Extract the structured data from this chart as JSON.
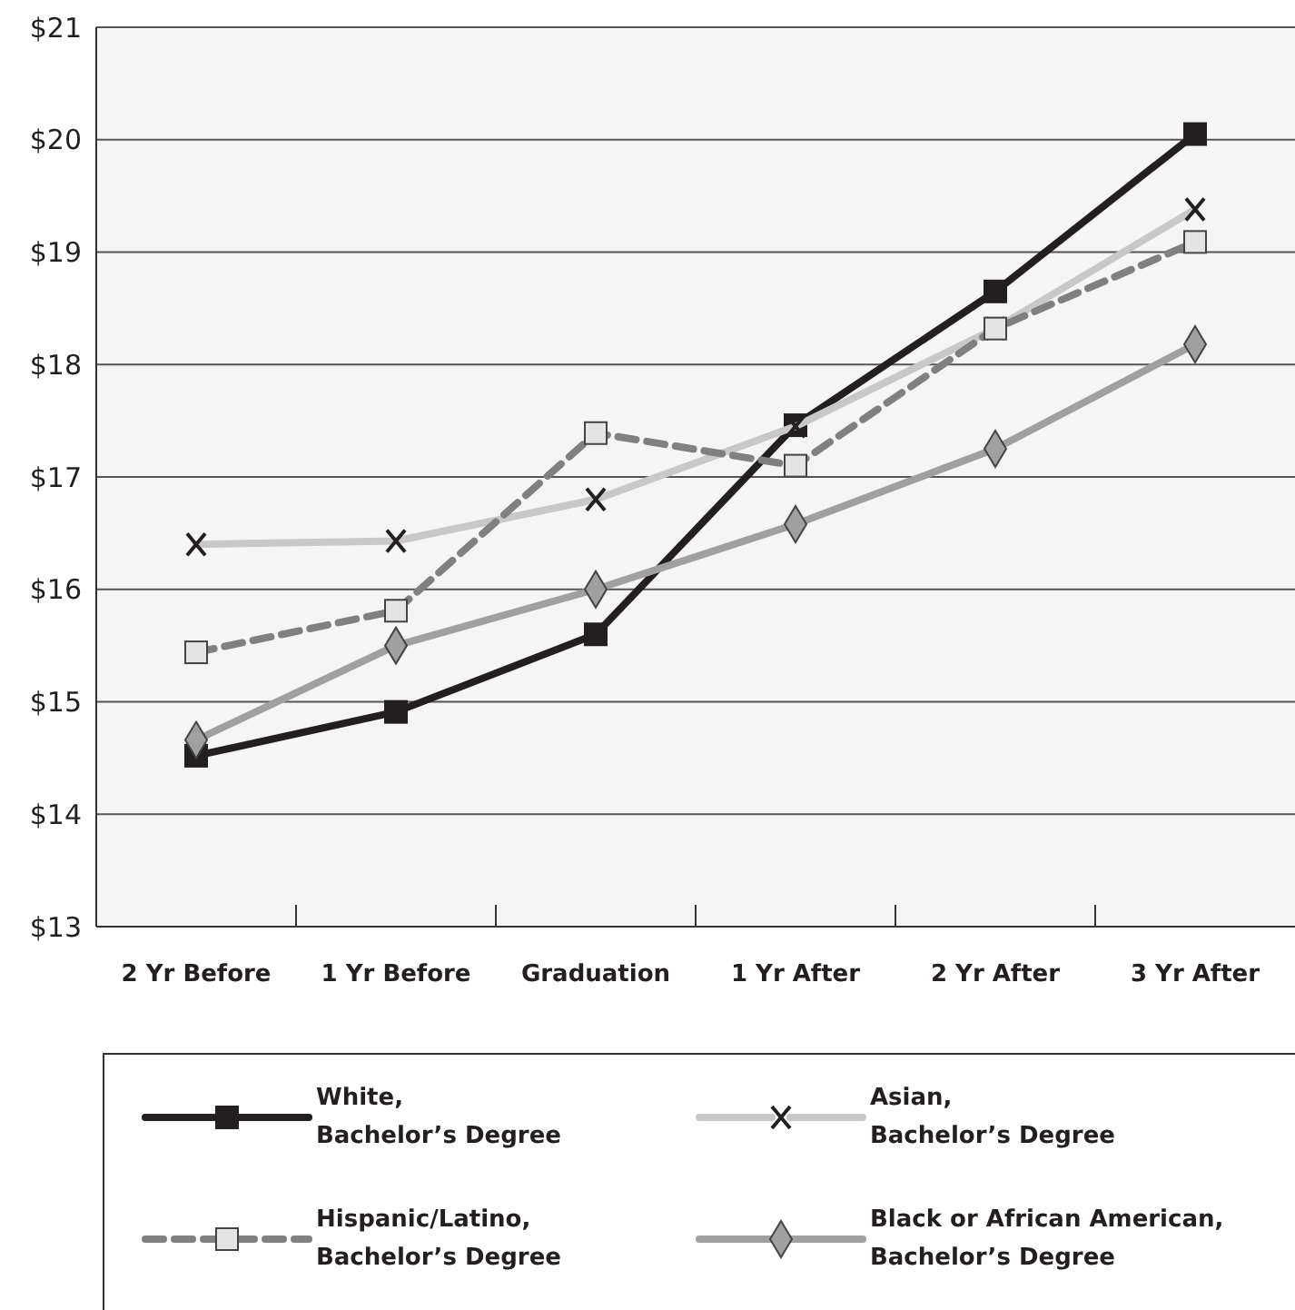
{
  "chart_data": {
    "type": "line",
    "categories": [
      "2 Yr Before",
      "1 Yr Before",
      "Graduation",
      "1 Yr After",
      "2 Yr After",
      "3 Yr After"
    ],
    "series": [
      {
        "name": "White,\nBachelor’s Degree",
        "color": "#231f20",
        "marker": "square",
        "line_style": "solid",
        "values": [
          14.52,
          14.91,
          15.6,
          17.46,
          18.65,
          20.05
        ]
      },
      {
        "name": "Asian,\nBachelor’s Degree",
        "color": "#c8c8c8",
        "marker": "cross",
        "line_style": "solid",
        "values": [
          16.4,
          16.43,
          16.8,
          17.45,
          18.32,
          19.38
        ]
      },
      {
        "name": "Hispanic/Latino,\nBachelor’s Degree",
        "color": "#808080",
        "marker": "square",
        "line_style": "dashed",
        "values": [
          15.44,
          15.81,
          17.39,
          17.1,
          18.32,
          19.09
        ]
      },
      {
        "name": "Black or African American,\nBachelor’s Degree",
        "color": "#a0a0a0",
        "marker": "diamond",
        "line_style": "solid",
        "values": [
          14.66,
          15.5,
          16.0,
          16.58,
          17.25,
          18.18
        ]
      }
    ],
    "ylim": [
      13,
      21
    ],
    "yticks": [
      {
        "value": 13,
        "label": "$13"
      },
      {
        "value": 14,
        "label": "$14"
      },
      {
        "value": 15,
        "label": "$15"
      },
      {
        "value": 16,
        "label": "$16"
      },
      {
        "value": 17,
        "label": "$17"
      },
      {
        "value": 18,
        "label": "$18"
      },
      {
        "value": 19,
        "label": "$19"
      },
      {
        "value": 20,
        "label": "$20"
      },
      {
        "value": 21,
        "label": "$21"
      }
    ],
    "grid": "y",
    "legend": "bottom"
  }
}
